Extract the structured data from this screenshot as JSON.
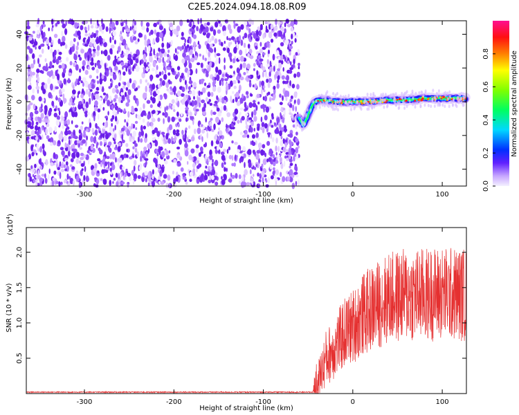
{
  "title": "C2E5.2024.094.18.08.R09",
  "chart_data": [
    {
      "type": "heatmap",
      "xlabel": "Height of straight line (km)",
      "ylabel": "Frequency (Hz)",
      "xlim": [
        -365,
        127
      ],
      "ylim": [
        -50,
        48
      ],
      "xticks": [
        -300,
        -200,
        -100,
        0,
        100
      ],
      "yticks": [
        -40,
        -20,
        0,
        20,
        40
      ],
      "noise_region_x": [
        -365,
        -60
      ],
      "ridge": [
        {
          "x": -60,
          "y": -10
        },
        {
          "x": -55,
          "y": -14
        },
        {
          "x": -50,
          "y": -8
        },
        {
          "x": -45,
          "y": -2
        },
        {
          "x": -40,
          "y": 1
        },
        {
          "x": -30,
          "y": 1
        },
        {
          "x": -20,
          "y": 0
        },
        {
          "x": 0,
          "y": 0
        },
        {
          "x": 20,
          "y": 0
        },
        {
          "x": 40,
          "y": 1
        },
        {
          "x": 60,
          "y": 1
        },
        {
          "x": 80,
          "y": 2
        },
        {
          "x": 100,
          "y": 2
        },
        {
          "x": 127,
          "y": 2
        }
      ],
      "colorbar": {
        "label": "Normalized spectral amplitude",
        "range": [
          0.0,
          1.0
        ],
        "ticks": [
          "0.0",
          "0.2",
          "0.4",
          "0.6",
          "0.8"
        ],
        "tick_values": [
          0.0,
          0.2,
          0.4,
          0.6,
          0.8
        ]
      },
      "colors": {
        "noise": "#8a2be2",
        "ridge_core": "#ff2020"
      }
    },
    {
      "type": "line",
      "xlabel": "Height of straight line (km)",
      "ylabel": "SNR (10 * v/v)",
      "multiplier_label": "(x10",
      "multiplier_exp": "4",
      "xlim": [
        -365,
        127
      ],
      "ylim": [
        0,
        2.35
      ],
      "xticks": [
        -300,
        -200,
        -100,
        0,
        100
      ],
      "yticks": [
        "0.5",
        "1.0",
        "1.5",
        "2.0"
      ],
      "ytick_values": [
        0.5,
        1.0,
        1.5,
        2.0
      ],
      "color": "#e53030",
      "series_profile": [
        {
          "x": -365,
          "y": 0.02
        },
        {
          "x": -45,
          "y": 0.02
        },
        {
          "x": -38,
          "y": 0.2
        },
        {
          "x": -30,
          "y": 0.5
        },
        {
          "x": -20,
          "y": 0.65
        },
        {
          "x": -10,
          "y": 0.85
        },
        {
          "x": 0,
          "y": 0.95
        },
        {
          "x": 10,
          "y": 1.1
        },
        {
          "x": 20,
          "y": 1.2
        },
        {
          "x": 40,
          "y": 1.35
        },
        {
          "x": 60,
          "y": 1.4
        },
        {
          "x": 80,
          "y": 1.4
        },
        {
          "x": 100,
          "y": 1.42
        },
        {
          "x": 127,
          "y": 1.4
        }
      ]
    }
  ]
}
